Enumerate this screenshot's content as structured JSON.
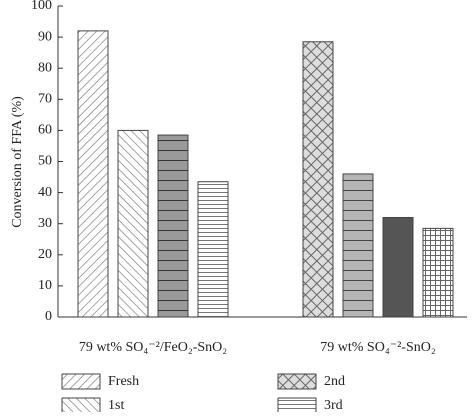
{
  "chart_data": {
    "type": "bar",
    "y_label": "Conversion of FFA (%)",
    "categories": [
      "79 wt% SO₄⁻²/FeO₂-SnO₂",
      "79 wt% SO₄⁻²-SnO₂"
    ],
    "series": [
      {
        "name": "Fresh",
        "pattern": "diag-up",
        "patterns": [
          "diag-up",
          "diamond"
        ],
        "values": [
          92,
          88.5
        ]
      },
      {
        "name": "1st",
        "pattern": "diag-down",
        "patterns": [
          "diag-down",
          "hlines-wide"
        ],
        "values": [
          60,
          46
        ]
      },
      {
        "name": "2nd",
        "pattern": "diamond",
        "patterns": [
          "hlines-gray",
          "dark"
        ],
        "values": [
          58.5,
          32
        ]
      },
      {
        "name": "3rd",
        "pattern": "hlines",
        "patterns": [
          "hlines",
          "grid"
        ],
        "values": [
          43.5,
          28.5
        ]
      }
    ],
    "ylim": [
      0,
      100
    ],
    "yticks": [
      0,
      10,
      20,
      30,
      40,
      50,
      60,
      70,
      80,
      90,
      100
    ]
  }
}
